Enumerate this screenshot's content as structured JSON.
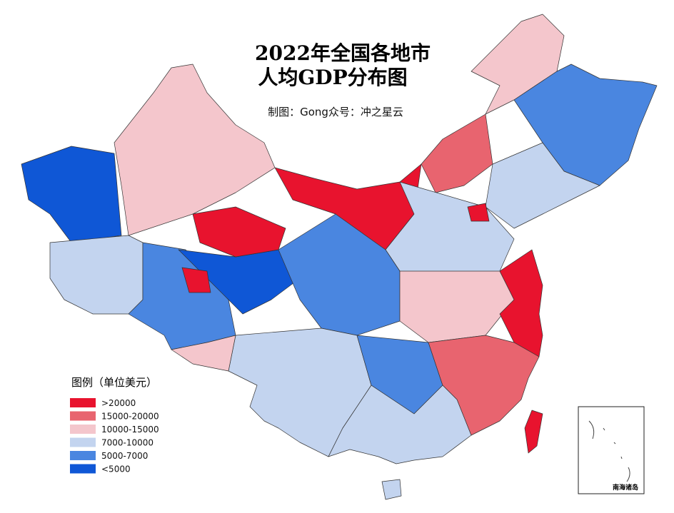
{
  "title": [
    "2022年全国各地市",
    "人均GDP分布图"
  ],
  "subtitle": "制图：Gong众号：冲之星云",
  "legend": {
    "title": "图例（单位美元）",
    "items": [
      {
        "label": ">20000",
        "color": "#e8132e"
      },
      {
        "label": "15000-20000",
        "color": "#e8646f"
      },
      {
        "label": "10000-15000",
        "color": "#f4c6cc"
      },
      {
        "label": "7000-10000",
        "color": "#c3d4ef"
      },
      {
        "label": "5000-7000",
        "color": "#4a86e0"
      },
      {
        "label": "<5000",
        "color": "#0f57d6"
      }
    ]
  },
  "inset_label": "南海诸岛"
}
